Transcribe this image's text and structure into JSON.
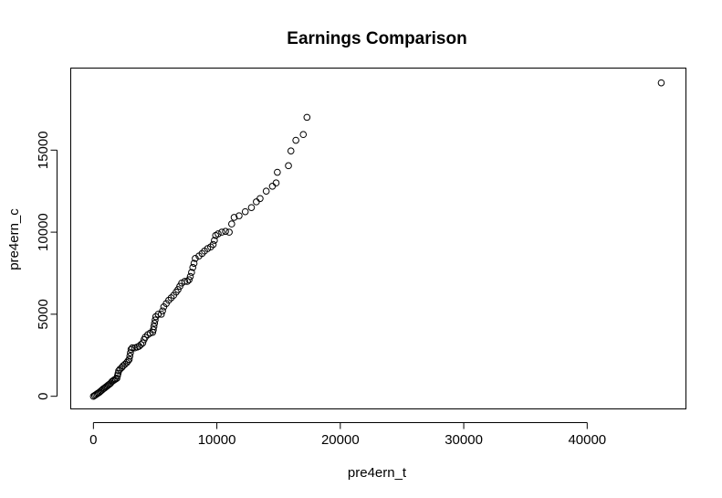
{
  "chart_data": {
    "type": "scatter",
    "title": "Earnings Comparison",
    "xlabel": "pre4ern_t",
    "ylabel": "pre4ern_c",
    "xlim": [
      -1837,
      48000
    ],
    "ylim": [
      -770,
      20000
    ],
    "xticks": [
      0,
      10000,
      20000,
      30000,
      40000
    ],
    "xtick_labels": [
      "0",
      "10000",
      "20000",
      "30000",
      "40000"
    ],
    "yticks": [
      0,
      5000,
      10000,
      15000
    ],
    "ytick_labels": [
      "0",
      "5000",
      "10000",
      "15000"
    ],
    "grid": false,
    "legend": "none",
    "points": [
      {
        "x": 0,
        "y": 0
      },
      {
        "x": 100,
        "y": 50
      },
      {
        "x": 200,
        "y": 100
      },
      {
        "x": 300,
        "y": 150
      },
      {
        "x": 400,
        "y": 200
      },
      {
        "x": 500,
        "y": 250
      },
      {
        "x": 600,
        "y": 320
      },
      {
        "x": 700,
        "y": 380
      },
      {
        "x": 800,
        "y": 450
      },
      {
        "x": 900,
        "y": 500
      },
      {
        "x": 1000,
        "y": 560
      },
      {
        "x": 1100,
        "y": 620
      },
      {
        "x": 1200,
        "y": 680
      },
      {
        "x": 1300,
        "y": 740
      },
      {
        "x": 1400,
        "y": 800
      },
      {
        "x": 1500,
        "y": 900
      },
      {
        "x": 1600,
        "y": 950
      },
      {
        "x": 1700,
        "y": 1000
      },
      {
        "x": 1800,
        "y": 1050
      },
      {
        "x": 1900,
        "y": 1100
      },
      {
        "x": 1950,
        "y": 1250
      },
      {
        "x": 2000,
        "y": 1400
      },
      {
        "x": 2050,
        "y": 1550
      },
      {
        "x": 2150,
        "y": 1650
      },
      {
        "x": 2300,
        "y": 1750
      },
      {
        "x": 2400,
        "y": 1850
      },
      {
        "x": 2550,
        "y": 1950
      },
      {
        "x": 2700,
        "y": 2050
      },
      {
        "x": 2800,
        "y": 2150
      },
      {
        "x": 2900,
        "y": 2250
      },
      {
        "x": 2950,
        "y": 2450
      },
      {
        "x": 3000,
        "y": 2650
      },
      {
        "x": 3050,
        "y": 2850
      },
      {
        "x": 3150,
        "y": 2950
      },
      {
        "x": 3350,
        "y": 2950
      },
      {
        "x": 3550,
        "y": 3000
      },
      {
        "x": 3700,
        "y": 3050
      },
      {
        "x": 3850,
        "y": 3150
      },
      {
        "x": 4000,
        "y": 3250
      },
      {
        "x": 4100,
        "y": 3450
      },
      {
        "x": 4200,
        "y": 3600
      },
      {
        "x": 4400,
        "y": 3750
      },
      {
        "x": 4600,
        "y": 3850
      },
      {
        "x": 4800,
        "y": 3900
      },
      {
        "x": 4850,
        "y": 4050
      },
      {
        "x": 4900,
        "y": 4250
      },
      {
        "x": 4950,
        "y": 4450
      },
      {
        "x": 5000,
        "y": 4650
      },
      {
        "x": 5050,
        "y": 4850
      },
      {
        "x": 5250,
        "y": 5000
      },
      {
        "x": 5500,
        "y": 5000
      },
      {
        "x": 5600,
        "y": 5200
      },
      {
        "x": 5700,
        "y": 5450
      },
      {
        "x": 5900,
        "y": 5650
      },
      {
        "x": 6100,
        "y": 5850
      },
      {
        "x": 6300,
        "y": 6000
      },
      {
        "x": 6500,
        "y": 6150
      },
      {
        "x": 6700,
        "y": 6350
      },
      {
        "x": 6850,
        "y": 6500
      },
      {
        "x": 7000,
        "y": 6700
      },
      {
        "x": 7150,
        "y": 6900
      },
      {
        "x": 7400,
        "y": 7000
      },
      {
        "x": 7600,
        "y": 7000
      },
      {
        "x": 7750,
        "y": 7100
      },
      {
        "x": 7850,
        "y": 7300
      },
      {
        "x": 7950,
        "y": 7550
      },
      {
        "x": 8050,
        "y": 7850
      },
      {
        "x": 8150,
        "y": 8100
      },
      {
        "x": 8250,
        "y": 8400
      },
      {
        "x": 8550,
        "y": 8550
      },
      {
        "x": 8800,
        "y": 8700
      },
      {
        "x": 9000,
        "y": 8850
      },
      {
        "x": 9250,
        "y": 9000
      },
      {
        "x": 9500,
        "y": 9100
      },
      {
        "x": 9700,
        "y": 9250
      },
      {
        "x": 9800,
        "y": 9500
      },
      {
        "x": 9900,
        "y": 9800
      },
      {
        "x": 10100,
        "y": 9900
      },
      {
        "x": 10400,
        "y": 10000
      },
      {
        "x": 10700,
        "y": 10050
      },
      {
        "x": 11000,
        "y": 10000
      },
      {
        "x": 11200,
        "y": 10500
      },
      {
        "x": 11400,
        "y": 10900
      },
      {
        "x": 11800,
        "y": 11000
      },
      {
        "x": 12300,
        "y": 11250
      },
      {
        "x": 12800,
        "y": 11500
      },
      {
        "x": 13200,
        "y": 11850
      },
      {
        "x": 13500,
        "y": 12050
      },
      {
        "x": 14000,
        "y": 12500
      },
      {
        "x": 14500,
        "y": 12800
      },
      {
        "x": 14800,
        "y": 13000
      },
      {
        "x": 14900,
        "y": 13650
      },
      {
        "x": 15800,
        "y": 14050
      },
      {
        "x": 16000,
        "y": 14950
      },
      {
        "x": 16400,
        "y": 15600
      },
      {
        "x": 17000,
        "y": 15950
      },
      {
        "x": 17300,
        "y": 17000
      },
      {
        "x": 46000,
        "y": 19100
      }
    ]
  }
}
